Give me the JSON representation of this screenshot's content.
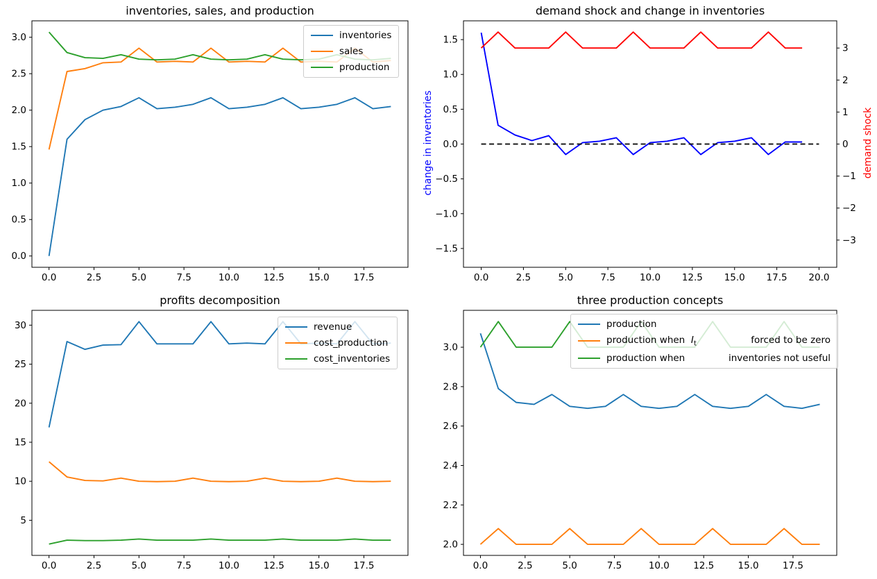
{
  "colors": {
    "tab_blue": "#1f77b4",
    "tab_orange": "#ff7f0e",
    "tab_green": "#2ca02c",
    "blue": "#0000ff",
    "red": "#ff0000",
    "black": "#000000"
  },
  "chart_data": [
    {
      "id": "inventories-sales-production",
      "type": "line",
      "title": "inventories, sales, and production",
      "x": [
        0,
        1,
        2,
        3,
        4,
        5,
        6,
        7,
        8,
        9,
        10,
        11,
        12,
        13,
        14,
        15,
        16,
        17,
        18,
        19
      ],
      "xlim": [
        -0.95,
        19.95
      ],
      "ylim": [
        -0.155,
        3.225
      ],
      "x_ticks": {
        "values": [
          0,
          2.5,
          5,
          7.5,
          10,
          12.5,
          15,
          17.5
        ],
        "labels": [
          "0.0",
          "2.5",
          "5.0",
          "7.5",
          "10.0",
          "12.5",
          "15.0",
          "17.5"
        ]
      },
      "y_ticks": {
        "values": [
          0,
          0.5,
          1,
          1.5,
          2,
          2.5,
          3
        ],
        "labels": [
          "0.0",
          "0.5",
          "1.0",
          "1.5",
          "2.0",
          "2.5",
          "3.0"
        ]
      },
      "grid": false,
      "legend_position": "upper right",
      "series": [
        {
          "name": "inventories",
          "color_key": "tab_blue",
          "values": [
            0.0,
            1.6,
            1.87,
            2.0,
            2.05,
            2.17,
            2.02,
            2.04,
            2.08,
            2.17,
            2.02,
            2.04,
            2.08,
            2.17,
            2.02,
            2.04,
            2.08,
            2.17,
            2.02,
            2.05
          ]
        },
        {
          "name": "sales",
          "color_key": "tab_orange",
          "values": [
            1.46,
            2.53,
            2.57,
            2.65,
            2.66,
            2.85,
            2.66,
            2.67,
            2.66,
            2.85,
            2.66,
            2.67,
            2.66,
            2.85,
            2.66,
            2.67,
            2.66,
            2.85,
            2.66,
            2.68
          ]
        },
        {
          "name": "production",
          "color_key": "tab_green",
          "values": [
            3.07,
            2.79,
            2.72,
            2.71,
            2.76,
            2.7,
            2.69,
            2.7,
            2.76,
            2.7,
            2.69,
            2.7,
            2.76,
            2.7,
            2.69,
            2.7,
            2.76,
            2.7,
            2.69,
            2.71
          ]
        }
      ]
    },
    {
      "id": "demand-shock-and-change-in-inventories",
      "type": "line",
      "title": "demand shock and change in inventories",
      "left_axis_label": "change in inventories",
      "right_axis_label": "demand shock",
      "x": [
        0,
        1,
        2,
        3,
        4,
        5,
        6,
        7,
        8,
        9,
        10,
        11,
        12,
        13,
        14,
        15,
        16,
        17,
        18,
        19
      ],
      "xlim": [
        -1.05,
        21.05
      ],
      "ylim_left": [
        -1.77,
        1.77
      ],
      "ylim_right": [
        -3.85,
        3.85
      ],
      "x_ticks": {
        "values": [
          0,
          2.5,
          5,
          7.5,
          10,
          12.5,
          15,
          17.5,
          20
        ],
        "labels": [
          "0.0",
          "2.5",
          "5.0",
          "7.5",
          "10.0",
          "12.5",
          "15.0",
          "17.5",
          "20.0"
        ]
      },
      "y_ticks_left": {
        "values": [
          1.5,
          1.0,
          0.5,
          0.0,
          -0.5,
          -1.0,
          -1.5
        ],
        "labels": [
          "1.5",
          "1.0",
          "0.5",
          "0.0",
          "−0.5",
          "−1.0",
          "−1.5"
        ]
      },
      "y_ticks_right": {
        "values": [
          3,
          2,
          1,
          0,
          -1,
          -2,
          -3
        ],
        "labels": [
          "3",
          "2",
          "1",
          "0",
          "−1",
          "−2",
          "−3"
        ]
      },
      "grid": false,
      "legend_position": "none",
      "series": [
        {
          "name": "change in inventories",
          "axis": "left",
          "color_key": "blue",
          "values": [
            1.6,
            0.27,
            0.13,
            0.05,
            0.12,
            -0.15,
            0.02,
            0.04,
            0.09,
            -0.15,
            0.02,
            0.04,
            0.09,
            -0.15,
            0.02,
            0.04,
            0.09,
            -0.15,
            0.03,
            0.03
          ]
        },
        {
          "name": "demand shock",
          "axis": "right",
          "color_key": "red",
          "values": [
            3,
            3.5,
            3,
            3,
            3,
            3.5,
            3,
            3,
            3,
            3.5,
            3,
            3,
            3,
            3.5,
            3,
            3,
            3,
            3.5,
            3,
            3
          ]
        },
        {
          "name": "zero line",
          "axis": "left",
          "color_key": "black",
          "dashed": true,
          "x": [
            0,
            20
          ],
          "values": [
            0,
            0
          ]
        }
      ]
    },
    {
      "id": "profits-decomposition",
      "type": "line",
      "title": "profits decomposition",
      "x": [
        0,
        1,
        2,
        3,
        4,
        5,
        6,
        7,
        8,
        9,
        10,
        11,
        12,
        13,
        14,
        15,
        16,
        17,
        18,
        19
      ],
      "xlim": [
        -0.95,
        19.95
      ],
      "ylim": [
        0.5,
        31.9
      ],
      "x_ticks": {
        "values": [
          0,
          2.5,
          5,
          7.5,
          10,
          12.5,
          15,
          17.5
        ],
        "labels": [
          "0.0",
          "2.5",
          "5.0",
          "7.5",
          "10.0",
          "12.5",
          "15.0",
          "17.5"
        ]
      },
      "y_ticks": {
        "values": [
          5,
          10,
          15,
          20,
          25,
          30
        ],
        "labels": [
          "5",
          "10",
          "15",
          "20",
          "25",
          "30"
        ]
      },
      "grid": false,
      "legend_position": "upper right",
      "series": [
        {
          "name": "revenue",
          "color_key": "tab_blue",
          "values": [
            16.9,
            27.9,
            26.9,
            27.45,
            27.5,
            30.45,
            27.6,
            27.6,
            27.6,
            30.45,
            27.6,
            27.7,
            27.6,
            30.45,
            27.6,
            27.7,
            27.6,
            30.45,
            27.6,
            27.7
          ]
        },
        {
          "name": "cost_production",
          "color_key": "tab_orange",
          "values": [
            12.5,
            10.55,
            10.1,
            10.05,
            10.4,
            10.0,
            9.95,
            10.0,
            10.4,
            10.0,
            9.95,
            10.0,
            10.4,
            10.0,
            9.95,
            10.0,
            10.4,
            10.0,
            9.95,
            10.0
          ]
        },
        {
          "name": "cost_inventories",
          "color_key": "tab_green",
          "values": [
            1.95,
            2.45,
            2.4,
            2.4,
            2.45,
            2.6,
            2.45,
            2.45,
            2.45,
            2.6,
            2.45,
            2.45,
            2.45,
            2.6,
            2.45,
            2.45,
            2.45,
            2.6,
            2.45,
            2.45
          ]
        }
      ]
    },
    {
      "id": "three-production-concepts",
      "type": "line",
      "title": "three production concepts",
      "x": [
        0,
        1,
        2,
        3,
        4,
        5,
        6,
        7,
        8,
        9,
        10,
        11,
        12,
        13,
        14,
        15,
        16,
        17,
        18,
        19
      ],
      "xlim": [
        -0.95,
        19.95
      ],
      "ylim": [
        1.944,
        3.187
      ],
      "x_ticks": {
        "values": [
          0,
          2.5,
          5,
          7.5,
          10,
          12.5,
          15,
          17.5
        ],
        "labels": [
          "0.0",
          "2.5",
          "5.0",
          "7.5",
          "10.0",
          "12.5",
          "15.0",
          "17.5"
        ]
      },
      "y_ticks": {
        "values": [
          2.0,
          2.2,
          2.4,
          2.6,
          2.8,
          3.0
        ],
        "labels": [
          "2.0",
          "2.2",
          "2.4",
          "2.6",
          "2.8",
          "3.0"
        ]
      },
      "grid": false,
      "legend_position": "upper center",
      "series": [
        {
          "name": "production",
          "color_key": "tab_blue",
          "label": "production",
          "values": [
            3.07,
            2.79,
            2.72,
            2.71,
            2.76,
            2.7,
            2.69,
            2.7,
            2.76,
            2.7,
            2.69,
            2.7,
            2.76,
            2.7,
            2.69,
            2.7,
            2.76,
            2.7,
            2.69,
            2.71
          ]
        },
        {
          "name": "production-when-It-forced-to-be-zero",
          "color_key": "tab_orange",
          "label_pre": "production when",
          "math_var": "I",
          "math_sub": "t",
          "label_post": "forced to be zero",
          "values": [
            2.0,
            2.08,
            2.0,
            2.0,
            2.0,
            2.08,
            2.0,
            2.0,
            2.0,
            2.08,
            2.0,
            2.0,
            2.0,
            2.08,
            2.0,
            2.0,
            2.0,
            2.08,
            2.0,
            2.0
          ]
        },
        {
          "name": "production-when-inventories-not-useful",
          "color_key": "tab_green",
          "label_pre": "production when",
          "label_post": "inventories not useful",
          "values": [
            3.0,
            3.13,
            3.0,
            3.0,
            3.0,
            3.13,
            3.0,
            3.0,
            3.0,
            3.13,
            3.0,
            3.0,
            3.0,
            3.13,
            3.0,
            3.0,
            3.0,
            3.13,
            3.0,
            3.0
          ]
        }
      ]
    }
  ]
}
